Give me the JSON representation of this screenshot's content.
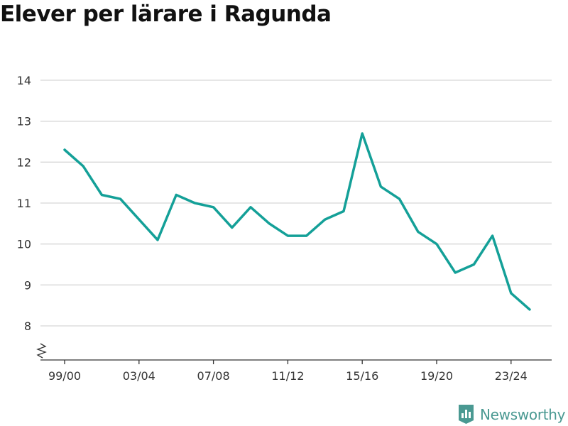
{
  "title": "Elever per lärare i Ragunda",
  "brand": {
    "name": "Newsworthy",
    "color": "#4a9992"
  },
  "chart_data": {
    "type": "line",
    "x": [
      "99/00",
      "00/01",
      "01/02",
      "02/03",
      "03/04",
      "04/05",
      "05/06",
      "06/07",
      "07/08",
      "08/09",
      "09/10",
      "10/11",
      "11/12",
      "12/13",
      "13/14",
      "14/15",
      "15/16",
      "16/17",
      "17/18",
      "18/19",
      "19/20",
      "20/21",
      "21/22",
      "22/23",
      "23/24",
      "24/25"
    ],
    "series": [
      {
        "values": [
          12.3,
          11.9,
          11.2,
          11.1,
          10.6,
          10.1,
          11.2,
          11.0,
          10.9,
          10.4,
          10.9,
          10.5,
          10.2,
          10.2,
          10.6,
          10.8,
          12.7,
          11.4,
          11.1,
          10.3,
          10.0,
          9.3,
          9.5,
          10.2,
          8.8,
          8.4
        ],
        "color": "#14a098"
      }
    ],
    "xticks": [
      "99/00",
      "03/04",
      "07/08",
      "11/12",
      "15/16",
      "19/20",
      "23/24"
    ],
    "yticks": [
      8,
      9,
      10,
      11,
      12,
      13,
      14
    ],
    "ylim": [
      8,
      14
    ],
    "y_axis_break": true,
    "grid": true,
    "xlabel": "",
    "ylabel": ""
  }
}
